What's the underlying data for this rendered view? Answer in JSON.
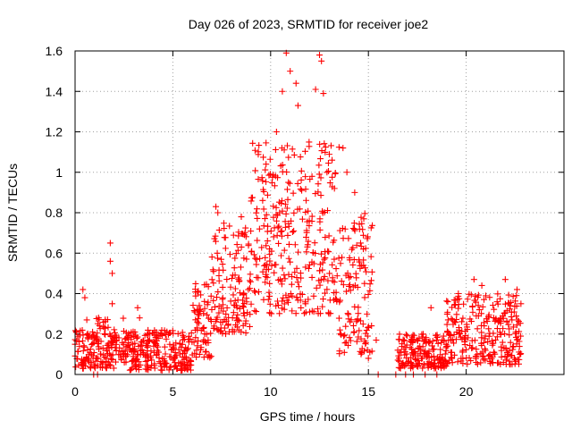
{
  "chart_data": {
    "type": "scatter",
    "title": "Day 026 of 2023, SRMTID for receiver joe2",
    "xlabel": "GPS time / hours",
    "ylabel": "SRMTID / TECUs",
    "xlim": [
      0,
      25
    ],
    "ylim": [
      0,
      1.6
    ],
    "xticks": [
      0,
      5,
      10,
      15,
      20
    ],
    "xtick_labels": [
      "0",
      "5",
      "10",
      "15",
      "20"
    ],
    "yticks": [
      0,
      0.2,
      0.4,
      0.6,
      0.8,
      1,
      1.2,
      1.4,
      1.6
    ],
    "ytick_labels": [
      "0",
      "0.2",
      "0.4",
      "0.6",
      "0.8",
      "1",
      "1.2",
      "1.4",
      "1.6"
    ],
    "grid": true,
    "marker": "+",
    "color": "#ff0000",
    "envelope": [
      {
        "x_range": [
          0,
          1
        ],
        "y_range": [
          0.03,
          0.22
        ]
      },
      {
        "x_range": [
          1,
          2.5
        ],
        "y_range": [
          0.03,
          0.28
        ]
      },
      {
        "x_range": [
          2.5,
          6
        ],
        "y_range": [
          0.02,
          0.22
        ]
      },
      {
        "x_range": [
          6,
          7
        ],
        "y_range": [
          0.08,
          0.45
        ]
      },
      {
        "x_range": [
          7,
          9
        ],
        "y_range": [
          0.2,
          0.75
        ]
      },
      {
        "x_range": [
          9,
          13.5
        ],
        "y_range": [
          0.3,
          1.15
        ]
      },
      {
        "x_range": [
          13.5,
          15.2
        ],
        "y_range": [
          0.1,
          0.8
        ]
      },
      {
        "x_range": [
          16.5,
          19
        ],
        "y_range": [
          0.03,
          0.2
        ]
      },
      {
        "x_range": [
          19,
          22.8
        ],
        "y_range": [
          0.05,
          0.4
        ]
      }
    ],
    "highlights": [
      {
        "x": 0.4,
        "y": 0.42
      },
      {
        "x": 0.5,
        "y": 0.38
      },
      {
        "x": 0.6,
        "y": 0.27
      },
      {
        "x": 1.8,
        "y": 0.65
      },
      {
        "x": 1.8,
        "y": 0.56
      },
      {
        "x": 1.9,
        "y": 0.5
      },
      {
        "x": 1.9,
        "y": 0.35
      },
      {
        "x": 3.2,
        "y": 0.33
      },
      {
        "x": 3.3,
        "y": 0.28
      },
      {
        "x": 7.2,
        "y": 0.83
      },
      {
        "x": 7.3,
        "y": 0.8
      },
      {
        "x": 8.5,
        "y": 0.78
      },
      {
        "x": 10.3,
        "y": 1.2
      },
      {
        "x": 10.6,
        "y": 1.4
      },
      {
        "x": 10.8,
        "y": 1.59
      },
      {
        "x": 11.0,
        "y": 1.5
      },
      {
        "x": 11.3,
        "y": 1.44
      },
      {
        "x": 11.4,
        "y": 1.33
      },
      {
        "x": 12.3,
        "y": 1.41
      },
      {
        "x": 12.5,
        "y": 1.58
      },
      {
        "x": 12.6,
        "y": 1.55
      },
      {
        "x": 12.7,
        "y": 1.39
      },
      {
        "x": 13.7,
        "y": 1.12
      },
      {
        "x": 13.9,
        "y": 1.0
      },
      {
        "x": 14.3,
        "y": 0.9
      },
      {
        "x": 14.6,
        "y": 0.65
      },
      {
        "x": 14.8,
        "y": 0.45
      },
      {
        "x": 15.0,
        "y": 0.08
      },
      {
        "x": 15.4,
        "y": 0.17
      },
      {
        "x": 17.8,
        "y": 0.2
      },
      {
        "x": 18.2,
        "y": 0.33
      },
      {
        "x": 19.6,
        "y": 0.4
      },
      {
        "x": 20.4,
        "y": 0.47
      },
      {
        "x": 20.8,
        "y": 0.44
      },
      {
        "x": 22.0,
        "y": 0.47
      },
      {
        "x": 22.6,
        "y": 0.42
      },
      {
        "x": 22.8,
        "y": 0.35
      }
    ],
    "zeros": [
      0.95,
      1.15,
      15.5,
      16.4,
      16.9,
      17.3,
      17.9,
      18.5
    ]
  }
}
